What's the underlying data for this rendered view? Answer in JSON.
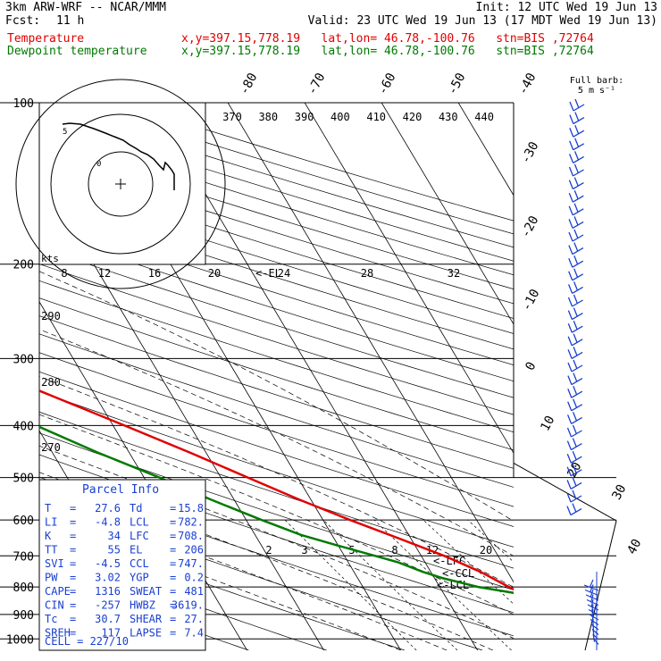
{
  "header": {
    "model": "3km ARW-WRF -- NCAR/MMM",
    "init": "Init: 12 UTC Wed 19 Jun 13",
    "fcst_label": "Fcst:",
    "fcst_value": "11 h",
    "valid": "Valid: 23 UTC Wed 19 Jun 13 (17 MDT Wed 19 Jun 13)",
    "temp_label": "Temperature",
    "temp_info": "x,y=397.15,778.19   lat,lon= 46.78,-100.76   stn=BIS ,72764",
    "dew_label": "Dewpoint temperature",
    "dew_info": "x,y=397.15,778.19   lat,lon= 46.78,-100.76   stn=BIS ,72764",
    "wind_title_1": "Full barb:",
    "wind_title_2": "5 m s⁻¹"
  },
  "colors": {
    "temperature": "#e00000",
    "dewpoint": "#007a00",
    "grid": "#000000",
    "parcel_box": "#1a3fd0"
  },
  "chart_data": {
    "type": "line",
    "title": "Skew-T log-P sounding",
    "ylabel": "Pressure (hPa)",
    "pressure_ticks": [
      100,
      200,
      300,
      400,
      500,
      600,
      700,
      800,
      900,
      1000
    ],
    "isotherm_labels": [
      "-80",
      "-70",
      "-60",
      "-50",
      "-40",
      "-30",
      "-20",
      "-10",
      "0",
      "10",
      "20",
      "30",
      "40"
    ],
    "theta_labels": [
      "370",
      "380",
      "390",
      "400",
      "410",
      "420",
      "430",
      "440"
    ],
    "theta_left_labels": [
      "290",
      "280",
      "270"
    ],
    "mixing_ratio_labels": [
      "2",
      "3",
      "5",
      "8",
      "12",
      "20"
    ],
    "hodo_ring_labels": [
      "8",
      "12",
      "16",
      "20",
      "24",
      "28",
      "32"
    ],
    "hodo_units": "kts",
    "markers": {
      "el": "<-EL",
      "lfc": "<-LFC",
      "ccl": "<-CCL",
      "lcl": "<-LCL"
    },
    "series": [
      {
        "name": "Temperature",
        "points": [
          [
            1000,
            24.0
          ],
          [
            970,
            21.5
          ],
          [
            940,
            19.0
          ],
          [
            900,
            15.5
          ],
          [
            850,
            12.0
          ],
          [
            800,
            9.0
          ],
          [
            750,
            6.5
          ],
          [
            700,
            3.0
          ],
          [
            650,
            -1.5
          ],
          [
            600,
            -6.5
          ],
          [
            550,
            -11.5
          ],
          [
            500,
            -16.5
          ],
          [
            450,
            -22.0
          ],
          [
            400,
            -28.5
          ],
          [
            350,
            -36.0
          ],
          [
            300,
            -44.5
          ],
          [
            270,
            -50.5
          ],
          [
            250,
            -54.5
          ],
          [
            225,
            -59.0
          ],
          [
            210,
            -61.5
          ],
          [
            200,
            -62.0
          ],
          [
            185,
            -60.0
          ],
          [
            170,
            -58.0
          ],
          [
            150,
            -58.0
          ],
          [
            130,
            -58.5
          ],
          [
            115,
            -59.0
          ],
          [
            100,
            -59.5
          ]
        ]
      },
      {
        "name": "Dewpoint temperature",
        "points": [
          [
            975,
            17.0
          ],
          [
            950,
            16.5
          ],
          [
            930,
            16.0
          ],
          [
            900,
            15.5
          ],
          [
            870,
            15.0
          ],
          [
            850,
            14.0
          ],
          [
            820,
            9.0
          ],
          [
            800,
            5.0
          ],
          [
            770,
            1.0
          ],
          [
            750,
            -1.0
          ],
          [
            720,
            -3.5
          ],
          [
            700,
            -6.0
          ],
          [
            670,
            -10.0
          ],
          [
            640,
            -14.0
          ],
          [
            600,
            -18.0
          ],
          [
            550,
            -23.0
          ],
          [
            500,
            -28.0
          ],
          [
            450,
            -34.0
          ],
          [
            400,
            -40.0
          ],
          [
            350,
            -45.5
          ],
          [
            320,
            -49.0
          ],
          [
            300,
            -53.0
          ],
          [
            280,
            -58.0
          ],
          [
            260,
            -63.0
          ],
          [
            240,
            -68.0
          ],
          [
            225,
            -72.0
          ],
          [
            210,
            -75.0
          ],
          [
            195,
            -75.0
          ],
          [
            180,
            -73.0
          ],
          [
            165,
            -71.5
          ],
          [
            150,
            -72.5
          ],
          [
            135,
            -77.0
          ],
          [
            125,
            -80.5
          ],
          [
            118,
            -84.0
          ],
          [
            112,
            -82.0
          ],
          [
            100,
            -76.0
          ]
        ]
      }
    ]
  },
  "parcel": {
    "title": "Parcel Info",
    "rows": [
      {
        "k1": "T",
        "v1": "27.6",
        "k2": "Td",
        "v2": "15.8"
      },
      {
        "k1": "LI",
        "v1": "-4.8",
        "k2": "LCL",
        "v2": "782."
      },
      {
        "k1": "K",
        "v1": "34",
        "k2": "LFC",
        "v2": "708."
      },
      {
        "k1": "TT",
        "v1": "55",
        "k2": "EL",
        "v2": "206"
      },
      {
        "k1": "SVI",
        "v1": "-4.5",
        "k2": "CCL",
        "v2": "747."
      },
      {
        "k1": "PW",
        "v1": "3.02",
        "k2": "YGP",
        "v2": "0.2"
      },
      {
        "k1": "CAPE",
        "v1": "1316",
        "k2": "SWEAT",
        "v2": "481"
      },
      {
        "k1": "CIN",
        "v1": "-257",
        "k2": "HWBZ",
        "v2": "3619."
      },
      {
        "k1": "Tc",
        "v1": "30.7",
        "k2": "SHEAR",
        "v2": "27."
      },
      {
        "k1": "SREH",
        "v1": "117",
        "k2": "LAPSE",
        "v2": "7.4"
      }
    ],
    "cell": "CELL = 227/10"
  }
}
